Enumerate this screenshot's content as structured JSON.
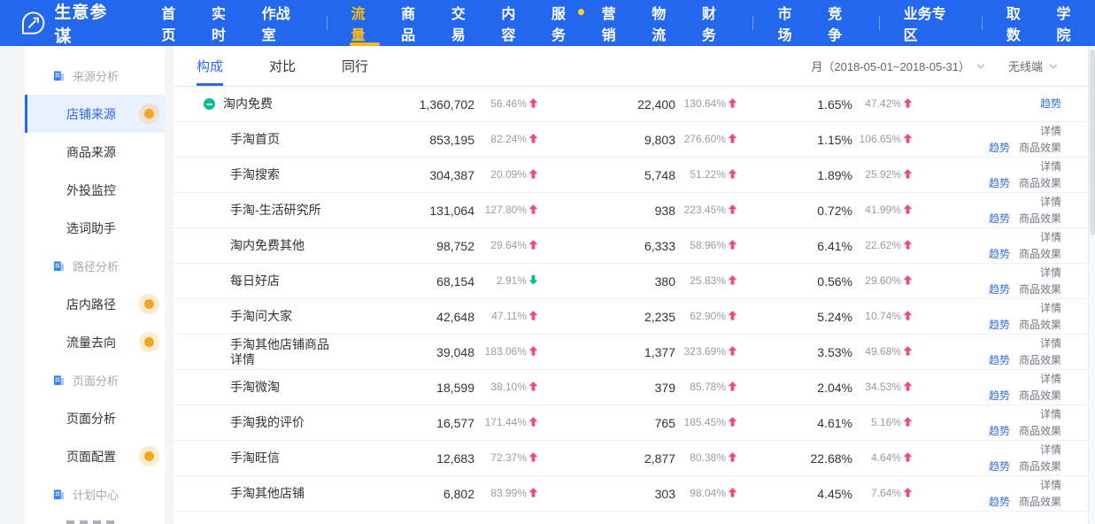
{
  "nav": {
    "brand": "生意参谋",
    "items": [
      {
        "label": "首页"
      },
      {
        "label": "实时"
      },
      {
        "label": "作战室"
      },
      {
        "type": "divider"
      },
      {
        "label": "流量",
        "active": true
      },
      {
        "label": "商品"
      },
      {
        "label": "交易"
      },
      {
        "label": "内容"
      },
      {
        "label": "服务",
        "badge": true
      },
      {
        "label": "营销"
      },
      {
        "label": "物流"
      },
      {
        "label": "财务"
      },
      {
        "type": "divider"
      },
      {
        "label": "市场"
      },
      {
        "label": "竞争"
      },
      {
        "type": "divider"
      },
      {
        "label": "业务专区"
      },
      {
        "type": "divider"
      },
      {
        "label": "取数"
      },
      {
        "label": "学院"
      }
    ]
  },
  "sidebar": {
    "groups": [
      {
        "header": "来源分析",
        "items": [
          {
            "label": "店铺来源",
            "active": true,
            "dot": true
          },
          {
            "label": "商品来源"
          },
          {
            "label": "外投监控"
          },
          {
            "label": "选词助手"
          }
        ]
      },
      {
        "header": "路径分析",
        "items": [
          {
            "label": "店内路径",
            "dot": true
          },
          {
            "label": "流量去向",
            "dot": true
          }
        ]
      },
      {
        "header": "页面分析",
        "items": [
          {
            "label": "页面分析"
          },
          {
            "label": "页面配置",
            "dot": true
          }
        ]
      },
      {
        "header": "计划中心",
        "items": []
      }
    ]
  },
  "toolbar": {
    "tabs": [
      {
        "label": "构成",
        "active": true
      },
      {
        "label": "对比"
      },
      {
        "label": "同行"
      }
    ],
    "date_label": "月（2018-05-01~2018-05-31）",
    "terminal_label": "无线端"
  },
  "table": {
    "links": {
      "trend": "趋势",
      "detail": "详情",
      "product_effect": "商品效果"
    },
    "rows": [
      {
        "name": "淘内免费",
        "parent": true,
        "visitors": "1,360,702",
        "visitors_change": "56.46%",
        "visitors_trend": "up",
        "buyers": "22,400",
        "buyers_change": "130.64%",
        "buyers_trend": "up",
        "conversion": "1.65%",
        "conversion_change": "47.42%",
        "conversion_trend": "up",
        "links": "trend_only"
      },
      {
        "name": "手淘首页",
        "visitors": "853,195",
        "visitors_change": "82.24%",
        "visitors_trend": "up",
        "buyers": "9,803",
        "buyers_change": "276.60%",
        "buyers_trend": "up",
        "conversion": "1.15%",
        "conversion_change": "106.65%",
        "conversion_trend": "up",
        "links": "full"
      },
      {
        "name": "手淘搜索",
        "visitors": "304,387",
        "visitors_change": "20.09%",
        "visitors_trend": "up",
        "buyers": "5,748",
        "buyers_change": "51.22%",
        "buyers_trend": "up",
        "conversion": "1.89%",
        "conversion_change": "25.92%",
        "conversion_trend": "up",
        "links": "full"
      },
      {
        "name": "手淘-生活研究所",
        "visitors": "131,064",
        "visitors_change": "127.80%",
        "visitors_trend": "up",
        "buyers": "938",
        "buyers_change": "223.45%",
        "buyers_trend": "up",
        "conversion": "0.72%",
        "conversion_change": "41.99%",
        "conversion_trend": "up",
        "links": "full"
      },
      {
        "name": "淘内免费其他",
        "visitors": "98,752",
        "visitors_change": "29.64%",
        "visitors_trend": "up",
        "buyers": "6,333",
        "buyers_change": "58.96%",
        "buyers_trend": "up",
        "conversion": "6.41%",
        "conversion_change": "22.62%",
        "conversion_trend": "up",
        "links": "full"
      },
      {
        "name": "每日好店",
        "visitors": "68,154",
        "visitors_change": "2.91%",
        "visitors_trend": "down",
        "buyers": "380",
        "buyers_change": "25.83%",
        "buyers_trend": "up",
        "conversion": "0.56%",
        "conversion_change": "29.60%",
        "conversion_trend": "up",
        "links": "full"
      },
      {
        "name": "手淘问大家",
        "visitors": "42,648",
        "visitors_change": "47.11%",
        "visitors_trend": "up",
        "buyers": "2,235",
        "buyers_change": "62.90%",
        "buyers_trend": "up",
        "conversion": "5.24%",
        "conversion_change": "10.74%",
        "conversion_trend": "up",
        "links": "full"
      },
      {
        "name": "手淘其他店铺商品详情",
        "visitors": "39,048",
        "visitors_change": "183.06%",
        "visitors_trend": "up",
        "buyers": "1,377",
        "buyers_change": "323.69%",
        "buyers_trend": "up",
        "conversion": "3.53%",
        "conversion_change": "49.68%",
        "conversion_trend": "up",
        "links": "full"
      },
      {
        "name": "手淘微淘",
        "visitors": "18,599",
        "visitors_change": "38.10%",
        "visitors_trend": "up",
        "buyers": "379",
        "buyers_change": "85.78%",
        "buyers_trend": "up",
        "conversion": "2.04%",
        "conversion_change": "34.53%",
        "conversion_trend": "up",
        "links": "full"
      },
      {
        "name": "手淘我的评价",
        "visitors": "16,577",
        "visitors_change": "171.44%",
        "visitors_trend": "up",
        "buyers": "765",
        "buyers_change": "185.45%",
        "buyers_trend": "up",
        "conversion": "4.61%",
        "conversion_change": "5.16%",
        "conversion_trend": "up",
        "links": "full"
      },
      {
        "name": "手淘旺信",
        "visitors": "12,683",
        "visitors_change": "72.37%",
        "visitors_trend": "up",
        "buyers": "2,877",
        "buyers_change": "80.38%",
        "buyers_trend": "up",
        "conversion": "22.68%",
        "conversion_change": "4.64%",
        "conversion_trend": "up",
        "links": "full"
      },
      {
        "name": "手淘其他店铺",
        "visitors": "6,802",
        "visitors_change": "83.99%",
        "visitors_trend": "up",
        "buyers": "303",
        "buyers_change": "98.04%",
        "buyers_trend": "up",
        "conversion": "4.45%",
        "conversion_change": "7.64%",
        "conversion_trend": "up",
        "links": "full"
      }
    ]
  },
  "colors": {
    "navbar_blue": "#2267EC",
    "nav_active_gold": "#F8BB1C",
    "sidebar_active_blue": "#2A6AE9",
    "orange_dot": "#F5A623",
    "up_arrow_pink": "#F14E6F",
    "down_arrow_green": "#00BE8D",
    "expand_dot_green": "#00BE8D",
    "link_blue": "#3470E4"
  }
}
